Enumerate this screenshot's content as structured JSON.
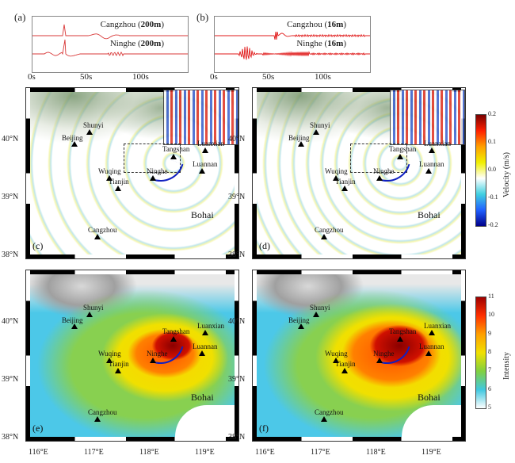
{
  "waveforms": [
    {
      "label": "(a)",
      "top": "Cangzhou",
      "top_depth": "200m",
      "bottom": "Ninghe",
      "bottom_depth": "200m",
      "ticks": [
        "0s",
        "50s",
        "100s"
      ],
      "color": "#d93a3a"
    },
    {
      "label": "(b)",
      "top": "Cangzhou",
      "top_depth": "16m",
      "bottom": "Ninghe",
      "bottom_depth": "16m",
      "ticks": [
        "0s",
        "50s",
        "100s"
      ],
      "color": "#e01818"
    }
  ],
  "maps": [
    {
      "label": "(c)",
      "type": "velocity",
      "inset": true
    },
    {
      "label": "(d)",
      "type": "velocity",
      "inset": true
    },
    {
      "label": "(e)",
      "type": "intensity",
      "inset": false
    },
    {
      "label": "(f)",
      "type": "intensity",
      "inset": false
    }
  ],
  "stations": [
    "Shunyi",
    "Beijing",
    "Tangshan",
    "Luanxian",
    "Luannan",
    "Wuqing",
    "Ninghe",
    "Tianjin",
    "Cangzhou"
  ],
  "sea_label": "Bohai",
  "lon_labels": [
    "116°E",
    "117°E",
    "118°E",
    "119°E"
  ],
  "lat_labels": [
    "40°N",
    "39°N",
    "38°N"
  ],
  "velocity_colorbar": {
    "title": "Velocity (m/s)",
    "ticks": [
      "0.2",
      "0.1",
      "0.0",
      "-0.1",
      "-0.2"
    ],
    "colors": [
      "#7a0000",
      "#ff2000",
      "#ffa000",
      "#f0f000",
      "#ffffff",
      "#40d0e0",
      "#2060ff",
      "#00008a"
    ]
  },
  "intensity_colorbar": {
    "title": "Intensity",
    "ticks": [
      "11",
      "10",
      "9",
      "8",
      "7",
      "6",
      "5"
    ],
    "colors": [
      "#a00000",
      "#ff3000",
      "#ffa000",
      "#f0e000",
      "#80d040",
      "#40c8e0",
      "#ffffff"
    ]
  }
}
